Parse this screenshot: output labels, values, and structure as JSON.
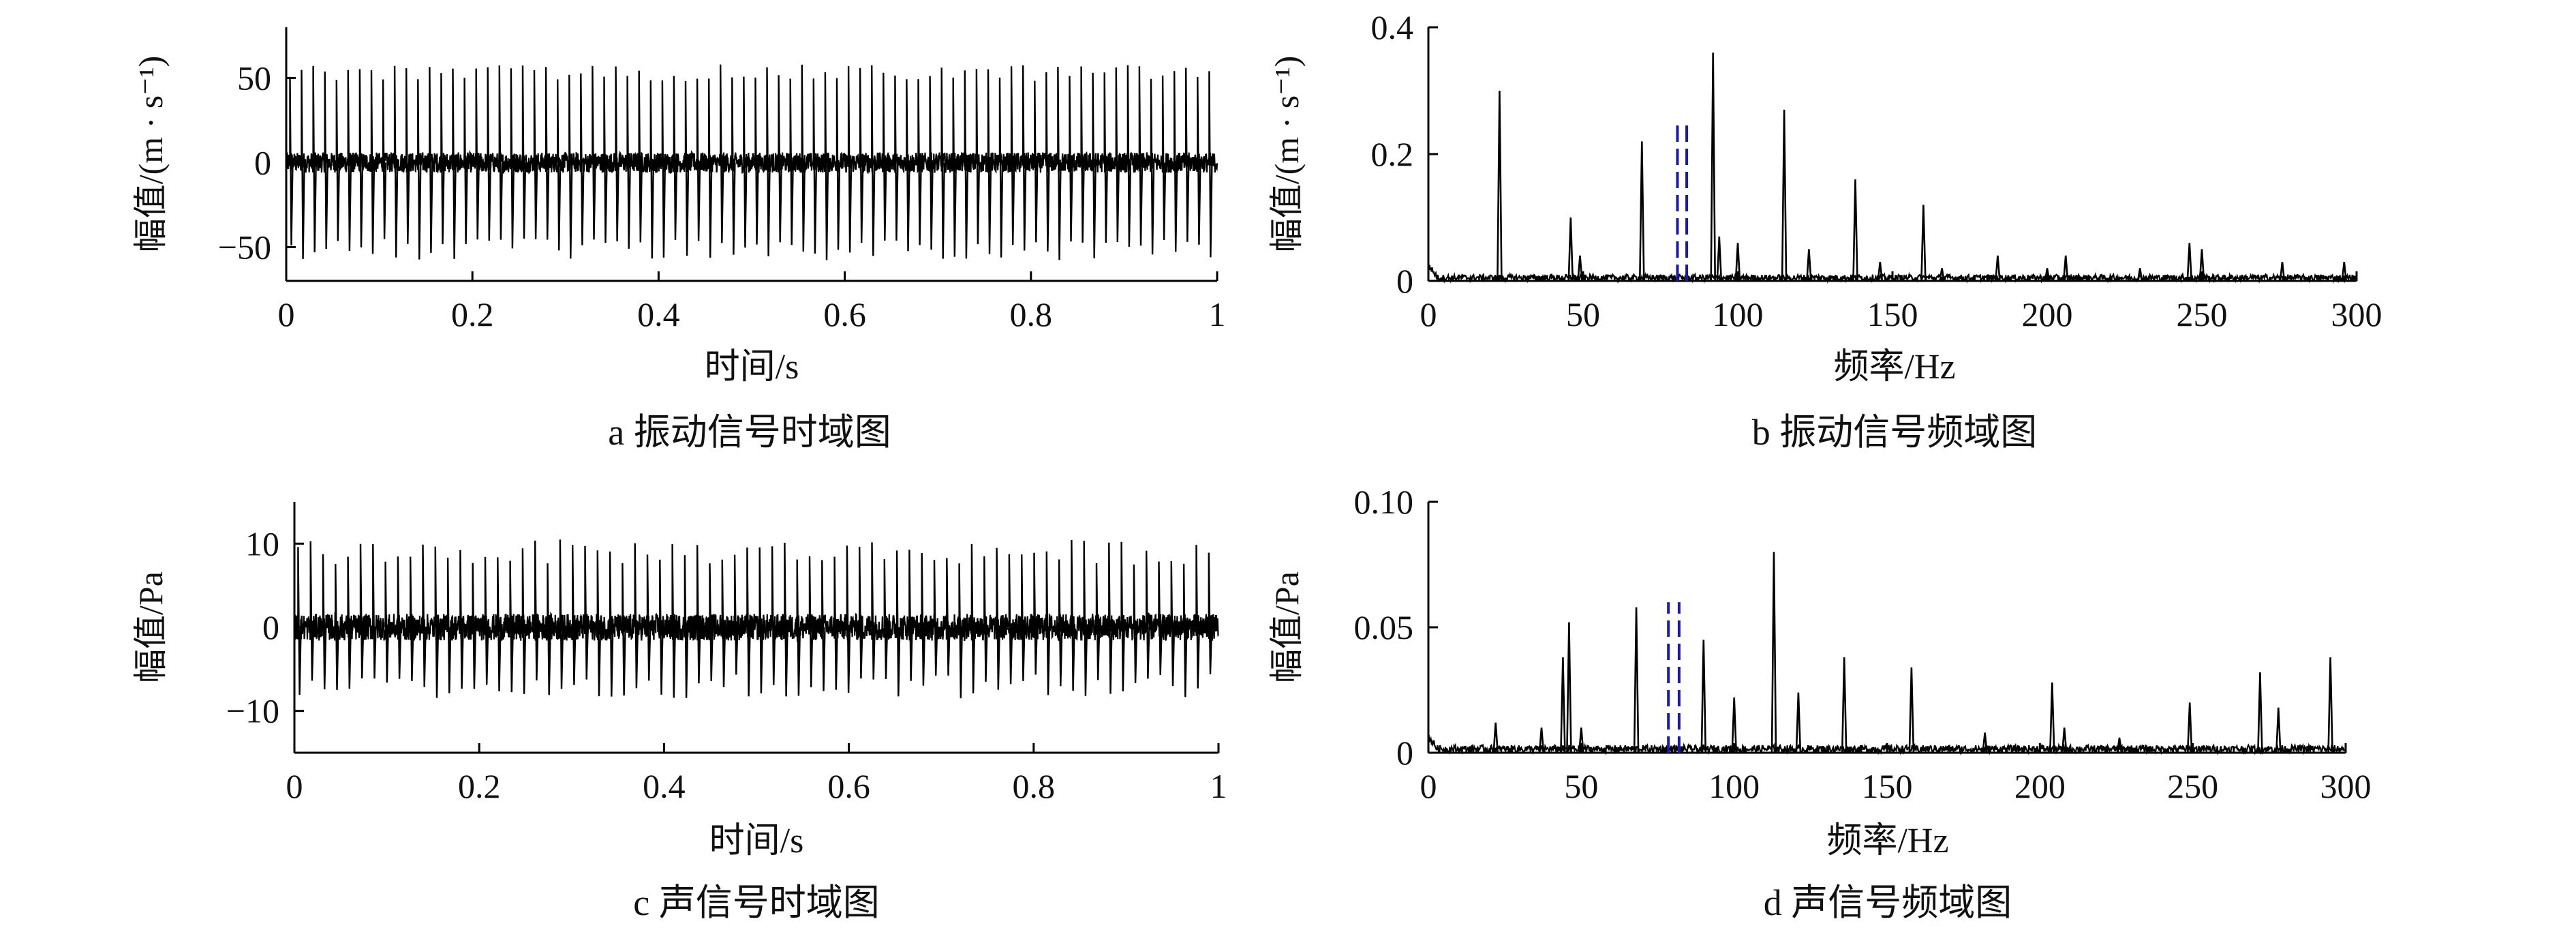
{
  "figure": {
    "panels": [
      {
        "id": "a",
        "caption": "a  振动信号时域图"
      },
      {
        "id": "b",
        "caption": "b  振动信号频域图"
      },
      {
        "id": "c",
        "caption": "c  声信号时域图"
      },
      {
        "id": "d",
        "caption": "d  声信号频域图"
      }
    ]
  },
  "chart_data": [
    {
      "id": "a",
      "type": "line",
      "xlabel": "时间/s",
      "ylabel": "幅值/(m · s⁻¹)",
      "xlim": [
        0,
        1
      ],
      "ylim": [
        -70,
        80
      ],
      "xticks": [
        0,
        0.2,
        0.4,
        0.6,
        0.8,
        1
      ],
      "xtick_labels": [
        "0",
        "0.2",
        "0.4",
        "0.6",
        "0.8",
        "1"
      ],
      "yticks": [
        -50,
        0,
        50
      ],
      "ytick_labels": [
        "−50",
        "0",
        "50"
      ],
      "series": [
        {
          "pulse_period": 0.0125,
          "pulse_peak_range": [
            48,
            58
          ],
          "pulse_trough_range": [
            -45,
            -58
          ],
          "noise_band": [
            -6,
            6
          ],
          "color": "#000000"
        }
      ]
    },
    {
      "id": "b",
      "type": "line",
      "xlabel": "频率/Hz",
      "ylabel": "幅值/(m · s⁻¹)",
      "xlim": [
        0,
        300
      ],
      "ylim": [
        0,
        0.4
      ],
      "xticks": [
        0,
        50,
        100,
        150,
        200,
        250,
        300
      ],
      "xtick_labels": [
        "0",
        "50",
        "100",
        "150",
        "200",
        "250",
        "300"
      ],
      "yticks": [
        0,
        0.2,
        0.4
      ],
      "ytick_labels": [
        "0",
        "0.2",
        "0.4"
      ],
      "series": [
        {
          "peaks": [
            [
              23,
              0.3
            ],
            [
              46,
              0.1
            ],
            [
              49,
              0.04
            ],
            [
              69,
              0.22
            ],
            [
              92,
              0.36
            ],
            [
              94,
              0.07
            ],
            [
              100,
              0.06
            ],
            [
              115,
              0.27
            ],
            [
              123,
              0.05
            ],
            [
              138,
              0.16
            ],
            [
              146,
              0.03
            ],
            [
              160,
              0.12
            ],
            [
              166,
              0.02
            ],
            [
              184,
              0.04
            ],
            [
              200,
              0.02
            ],
            [
              206,
              0.04
            ],
            [
              230,
              0.02
            ],
            [
              246,
              0.06
            ],
            [
              250,
              0.05
            ],
            [
              276,
              0.03
            ],
            [
              296,
              0.03
            ]
          ],
          "noise_level": 0.01,
          "color": "#000000"
        }
      ],
      "markers": [
        {
          "type": "vline",
          "x": 80.5,
          "y_range": [
            0,
            0.25
          ],
          "style": "dashed",
          "color": "#1a1aa6"
        },
        {
          "type": "vline",
          "x": 83.5,
          "y_range": [
            0,
            0.25
          ],
          "style": "dashed",
          "color": "#1a1aa6"
        }
      ]
    },
    {
      "id": "c",
      "type": "line",
      "xlabel": "时间/s",
      "ylabel": "幅值/Pa",
      "xlim": [
        0,
        1
      ],
      "ylim": [
        -15,
        15
      ],
      "xticks": [
        0,
        0.2,
        0.4,
        0.6,
        0.8,
        1
      ],
      "xtick_labels": [
        "0",
        "0.2",
        "0.4",
        "0.6",
        "0.8",
        "1"
      ],
      "yticks": [
        -10,
        0,
        10
      ],
      "ytick_labels": [
        "−10",
        "0",
        "10"
      ],
      "series": [
        {
          "pulse_period": 0.0135,
          "pulse_peak_range": [
            7.5,
            10.5
          ],
          "pulse_trough_range": [
            -5.5,
            -8.5
          ],
          "noise_band": [
            -1.6,
            1.6
          ],
          "color": "#000000"
        }
      ]
    },
    {
      "id": "d",
      "type": "line",
      "xlabel": "频率/Hz",
      "ylabel": "幅值/Pa",
      "xlim": [
        0,
        300
      ],
      "ylim": [
        0,
        0.1
      ],
      "xticks": [
        0,
        50,
        100,
        150,
        200,
        250,
        300
      ],
      "xtick_labels": [
        "0",
        "50",
        "100",
        "150",
        "200",
        "250",
        "300"
      ],
      "yticks": [
        0,
        0.05,
        0.1
      ],
      "ytick_labels": [
        "0",
        "0.05",
        "0.10"
      ],
      "series": [
        {
          "peaks": [
            [
              22,
              0.012
            ],
            [
              37,
              0.01
            ],
            [
              44,
              0.038
            ],
            [
              46,
              0.052
            ],
            [
              50,
              0.01
            ],
            [
              68,
              0.058
            ],
            [
              90,
              0.045
            ],
            [
              100,
              0.022
            ],
            [
              113,
              0.08
            ],
            [
              121,
              0.024
            ],
            [
              136,
              0.038
            ],
            [
              158,
              0.034
            ],
            [
              182,
              0.008
            ],
            [
              204,
              0.028
            ],
            [
              208,
              0.01
            ],
            [
              226,
              0.006
            ],
            [
              249,
              0.02
            ],
            [
              272,
              0.032
            ],
            [
              278,
              0.018
            ],
            [
              295,
              0.038
            ]
          ],
          "noise_level": 0.003,
          "color": "#000000"
        }
      ],
      "markers": [
        {
          "type": "vline",
          "x": 78.5,
          "y_range": [
            0,
            0.06
          ],
          "style": "dashed",
          "color": "#1a1aa6"
        },
        {
          "type": "vline",
          "x": 82.0,
          "y_range": [
            0,
            0.06
          ],
          "style": "dashed",
          "color": "#1a1aa6"
        }
      ]
    }
  ]
}
